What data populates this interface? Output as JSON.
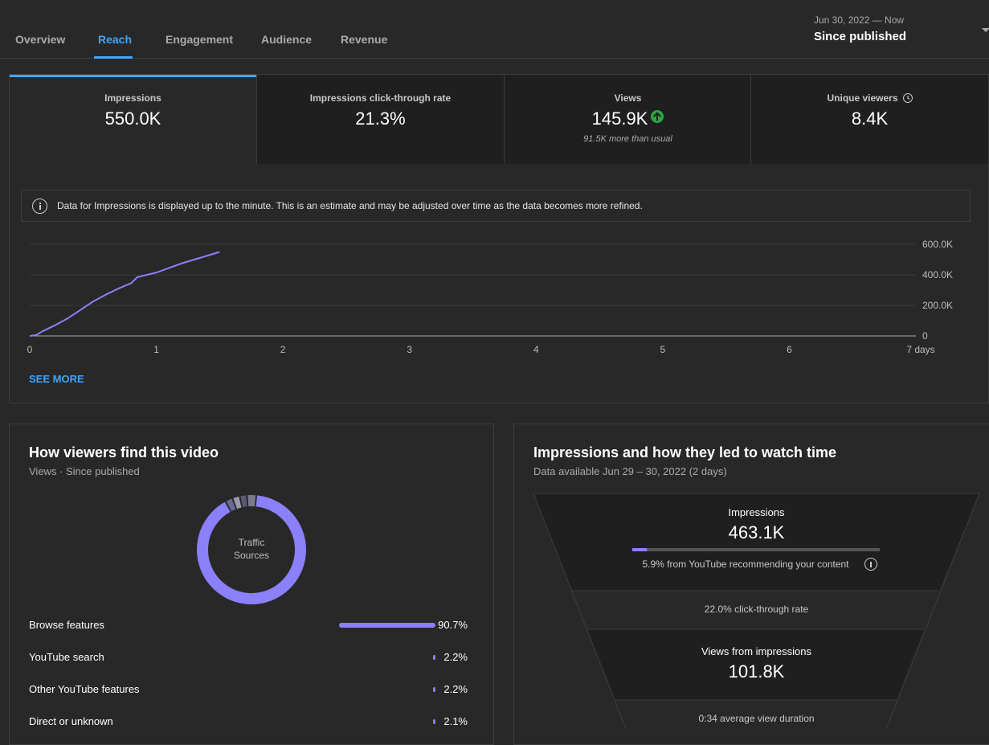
{
  "tabs": [
    {
      "label": "Overview"
    },
    {
      "label": "Reach"
    },
    {
      "label": "Engagement"
    },
    {
      "label": "Audience"
    },
    {
      "label": "Revenue"
    }
  ],
  "date_range": {
    "range": "Jun 30, 2022 — Now",
    "label": "Since published"
  },
  "metrics": [
    {
      "label": "Impressions",
      "value": "550.0K"
    },
    {
      "label": "Impressions click-through rate",
      "value": "21.3%"
    },
    {
      "label": "Views",
      "value": "145.9K",
      "note": "91.5K more than usual"
    },
    {
      "label": "Unique viewers",
      "value": "8.4K"
    }
  ],
  "notice": "Data for Impressions is displayed up to the minute. This is an estimate and may be adjusted over time as the data becomes more refined.",
  "chart_data": {
    "type": "line",
    "title": "",
    "xlabel": "",
    "ylabel": "",
    "x_tick_labels": [
      "0",
      "1",
      "2",
      "3",
      "4",
      "5",
      "6",
      "7 days"
    ],
    "y_tick_labels": [
      "600.0K",
      "400.0K",
      "200.0K",
      "0"
    ],
    "xlim": [
      0,
      7
    ],
    "ylim": [
      0,
      600000
    ],
    "grid": true,
    "color": "#8b80f9",
    "series": [
      {
        "x": [
          0,
          0.05,
          0.1,
          0.2,
          0.3,
          0.4,
          0.5,
          0.6,
          0.7,
          0.8,
          0.85,
          0.9,
          1.0,
          1.1,
          1.2,
          1.3,
          1.4,
          1.5
        ],
        "values": [
          0,
          5000,
          30000,
          70000,
          115000,
          170000,
          225000,
          270000,
          310000,
          345000,
          385000,
          395000,
          415000,
          445000,
          475000,
          500000,
          525000,
          550000
        ]
      }
    ]
  },
  "see_more": "SEE MORE",
  "traffic": {
    "title": "How viewers find this video",
    "subtitle": "Views · Since published",
    "donut_label_line1": "Traffic",
    "donut_label_line2": "Sources",
    "sources": [
      {
        "name": "Browse features",
        "pct": "90.7%",
        "value": 90.7
      },
      {
        "name": "YouTube search",
        "pct": "2.2%",
        "value": 2.2
      },
      {
        "name": "Other YouTube features",
        "pct": "2.2%",
        "value": 2.2
      },
      {
        "name": "Direct or unknown",
        "pct": "2.1%",
        "value": 2.1
      }
    ]
  },
  "funnel": {
    "title": "Impressions and how they led to watch time",
    "subtitle": "Data available Jun 29 – 30, 2022 (2 days)",
    "impressions_label": "Impressions",
    "impressions_value": "463.1K",
    "recommend_pct": 5.9,
    "recommend_text": "5.9% from YouTube recommending your content",
    "ctr_text": "22.0% click-through rate",
    "views_label": "Views from impressions",
    "views_value": "101.8K",
    "duration_text": "0:34 average view duration"
  }
}
